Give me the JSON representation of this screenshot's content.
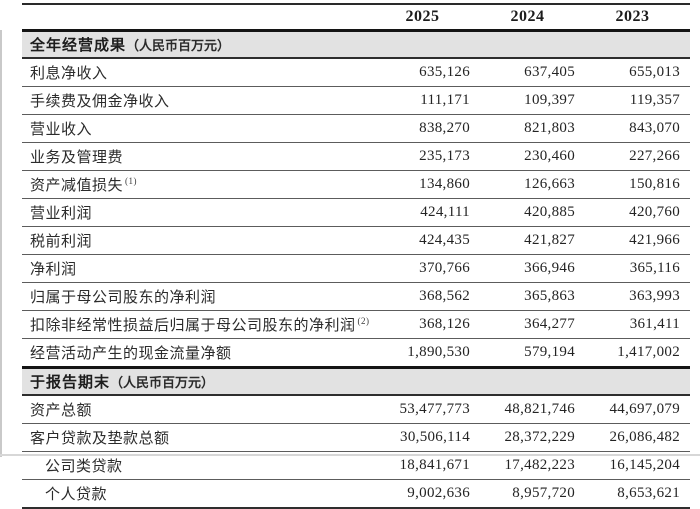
{
  "document": {
    "year_columns": [
      "2025",
      "2024",
      "2023"
    ],
    "sections": [
      {
        "title": "全年经营成果",
        "unit": "（人民币百万元）",
        "rows": [
          {
            "label": "利息净收入",
            "values": [
              "635,126",
              "637,405",
              "655,013"
            ]
          },
          {
            "label": "手续费及佣金净收入",
            "values": [
              "111,171",
              "109,397",
              "119,357"
            ]
          },
          {
            "label": "营业收入",
            "values": [
              "838,270",
              "821,803",
              "843,070"
            ]
          },
          {
            "label": "业务及管理费",
            "values": [
              "235,173",
              "230,460",
              "227,266"
            ]
          },
          {
            "label": "资产减值损失",
            "sup": "(1)",
            "values": [
              "134,860",
              "126,663",
              "150,816"
            ]
          },
          {
            "label": "营业利润",
            "values": [
              "424,111",
              "420,885",
              "420,760"
            ]
          },
          {
            "label": "税前利润",
            "values": [
              "424,435",
              "421,827",
              "421,966"
            ]
          },
          {
            "label": "净利润",
            "values": [
              "370,766",
              "366,946",
              "365,116"
            ]
          },
          {
            "label": "归属于母公司股东的净利润",
            "values": [
              "368,562",
              "365,863",
              "363,993"
            ]
          },
          {
            "label": "扣除非经常性损益后归属于母公司股东的净利润",
            "sup": "(2)",
            "values": [
              "368,126",
              "364,277",
              "361,411"
            ]
          },
          {
            "label": "经营活动产生的现金流量净额",
            "values": [
              "1,890,530",
              "579,194",
              "1,417,002"
            ]
          }
        ]
      },
      {
        "title": "于报告期末",
        "unit": "（人民币百万元）",
        "rows": [
          {
            "label": "资产总额",
            "values": [
              "53,477,773",
              "48,821,746",
              "44,697,079"
            ]
          },
          {
            "label": "客户贷款及垫款总额",
            "values": [
              "30,506,114",
              "28,372,229",
              "26,086,482"
            ]
          },
          {
            "label": "公司类贷款",
            "indent": true,
            "values": [
              "18,841,671",
              "17,482,223",
              "16,145,204"
            ]
          },
          {
            "label": "个人贷款",
            "indent": true,
            "values": [
              "9,002,636",
              "8,957,720",
              "8,653,621"
            ]
          }
        ]
      }
    ],
    "colors": {
      "section_header_bg": "#e2e2e2",
      "text": "#262626",
      "rule_heavy": "#141414",
      "rule_light": "#5c5c5c"
    }
  }
}
